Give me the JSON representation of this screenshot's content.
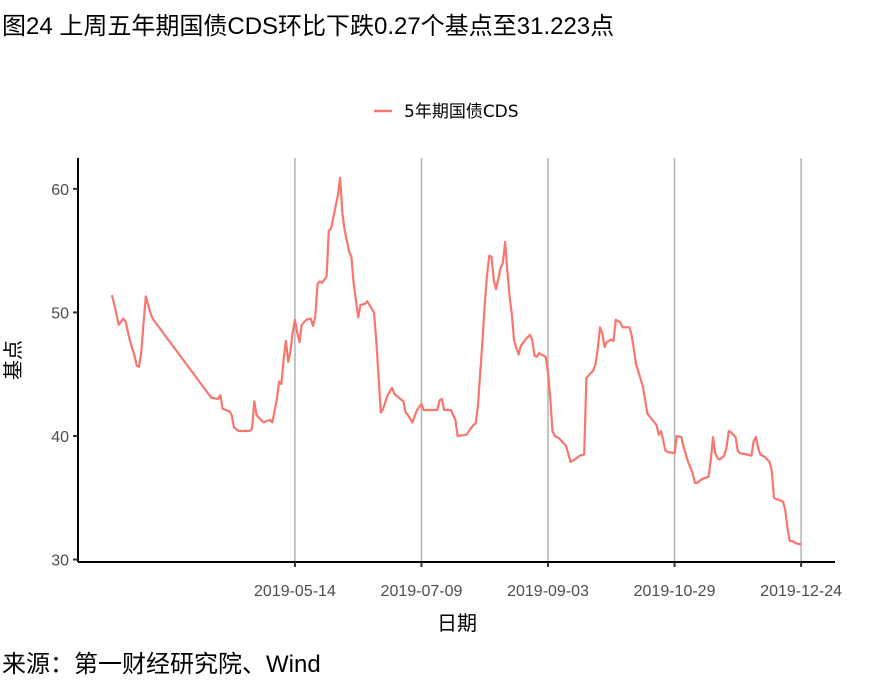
{
  "header": {
    "title": "图24 上周五年期国债CDS环比下跌0.27个基点至31.223点"
  },
  "footer": {
    "source": "来源：第一财经研究院、Wind"
  },
  "chart_data": {
    "type": "line",
    "title": "图24 上周五年期国债CDS环比下跌0.27个基点至31.223点",
    "xlabel": "日期",
    "ylabel": "基点",
    "xlim": [
      "2019-02-07",
      "2020-01-08"
    ],
    "ylim": [
      29.8,
      62.5
    ],
    "x_ticks": [
      "2019-05-14",
      "2019-07-09",
      "2019-09-03",
      "2019-10-29",
      "2019-12-24"
    ],
    "y_ticks": [
      30,
      40,
      50,
      60
    ],
    "grid": "vertical major lines at x ticks",
    "legend_position": "top",
    "series": [
      {
        "name": "5年期国债CDS",
        "color": "#F8766D",
        "points": [
          [
            "2019-02-22",
            51.4
          ],
          [
            "2019-02-23",
            50.7
          ],
          [
            "2019-02-25",
            49.0
          ],
          [
            "2019-02-27",
            49.5
          ],
          [
            "2019-02-28",
            49.3
          ],
          [
            "2019-03-02",
            47.7
          ],
          [
            "2019-03-04",
            46.5
          ],
          [
            "2019-03-05",
            45.7
          ],
          [
            "2019-03-06",
            45.6
          ],
          [
            "2019-03-07",
            46.8
          ],
          [
            "2019-03-08",
            49.1
          ],
          [
            "2019-03-09",
            51.3
          ],
          [
            "2019-03-11",
            50.0
          ],
          [
            "2019-03-12",
            49.5
          ],
          [
            "2019-04-07",
            43.1
          ],
          [
            "2019-04-10",
            43.0
          ],
          [
            "2019-04-11",
            43.3
          ],
          [
            "2019-04-12",
            42.2
          ],
          [
            "2019-04-15",
            42.0
          ],
          [
            "2019-04-16",
            41.7
          ],
          [
            "2019-04-17",
            40.7
          ],
          [
            "2019-04-19",
            40.4
          ],
          [
            "2019-04-24",
            40.4
          ],
          [
            "2019-04-25",
            40.6
          ],
          [
            "2019-04-26",
            42.8
          ],
          [
            "2019-04-27",
            41.7
          ],
          [
            "2019-04-30",
            41.1
          ],
          [
            "2019-05-03",
            41.3
          ],
          [
            "2019-05-04",
            41.1
          ],
          [
            "2019-05-06",
            43.0
          ],
          [
            "2019-05-07",
            44.4
          ],
          [
            "2019-05-08",
            44.2
          ],
          [
            "2019-05-09",
            46.2
          ],
          [
            "2019-05-10",
            47.7
          ],
          [
            "2019-05-11",
            46.0
          ],
          [
            "2019-05-12",
            46.8
          ],
          [
            "2019-05-13",
            48.4
          ],
          [
            "2019-05-14",
            49.4
          ],
          [
            "2019-05-15",
            48.4
          ],
          [
            "2019-05-16",
            47.6
          ],
          [
            "2019-05-17",
            49.0
          ],
          [
            "2019-05-19",
            49.4
          ],
          [
            "2019-05-21",
            49.5
          ],
          [
            "2019-05-22",
            48.9
          ],
          [
            "2019-05-23",
            49.7
          ],
          [
            "2019-05-24",
            52.3
          ],
          [
            "2019-05-25",
            52.5
          ],
          [
            "2019-05-26",
            52.4
          ],
          [
            "2019-05-28",
            52.9
          ],
          [
            "2019-05-29",
            56.6
          ],
          [
            "2019-05-30",
            56.8
          ],
          [
            "2019-06-02",
            59.5
          ],
          [
            "2019-06-03",
            60.9
          ],
          [
            "2019-06-04",
            58.0
          ],
          [
            "2019-06-05",
            56.7
          ],
          [
            "2019-06-07",
            54.9
          ],
          [
            "2019-06-08",
            54.5
          ],
          [
            "2019-06-09",
            52.3
          ],
          [
            "2019-06-11",
            49.6
          ],
          [
            "2019-06-12",
            50.6
          ],
          [
            "2019-06-14",
            50.7
          ],
          [
            "2019-06-15",
            50.9
          ],
          [
            "2019-06-18",
            50.0
          ],
          [
            "2019-06-19",
            47.7
          ],
          [
            "2019-06-21",
            41.9
          ],
          [
            "2019-06-22",
            42.2
          ],
          [
            "2019-06-24",
            43.3
          ],
          [
            "2019-06-26",
            43.9
          ],
          [
            "2019-06-27",
            43.4
          ],
          [
            "2019-07-01",
            42.8
          ],
          [
            "2019-07-02",
            41.9
          ],
          [
            "2019-07-03",
            41.7
          ],
          [
            "2019-07-05",
            41.1
          ],
          [
            "2019-07-07",
            42.1
          ],
          [
            "2019-07-09",
            42.6
          ],
          [
            "2019-07-10",
            42.1
          ],
          [
            "2019-07-12",
            42.1
          ],
          [
            "2019-07-16",
            42.1
          ],
          [
            "2019-07-17",
            42.9
          ],
          [
            "2019-07-18",
            43.0
          ],
          [
            "2019-07-19",
            42.1
          ],
          [
            "2019-07-22",
            42.1
          ],
          [
            "2019-07-24",
            41.3
          ],
          [
            "2019-07-25",
            40.0
          ],
          [
            "2019-07-29",
            40.1
          ],
          [
            "2019-07-30",
            40.4
          ],
          [
            "2019-08-01",
            40.9
          ],
          [
            "2019-08-02",
            41.0
          ],
          [
            "2019-08-03",
            42.5
          ],
          [
            "2019-08-04",
            45.1
          ],
          [
            "2019-08-05",
            47.7
          ],
          [
            "2019-08-06",
            50.6
          ],
          [
            "2019-08-07",
            53.0
          ],
          [
            "2019-08-08",
            54.6
          ],
          [
            "2019-08-09",
            54.5
          ],
          [
            "2019-08-10",
            52.6
          ],
          [
            "2019-08-11",
            51.9
          ],
          [
            "2019-08-12",
            52.7
          ],
          [
            "2019-08-13",
            53.6
          ],
          [
            "2019-08-14",
            54.0
          ],
          [
            "2019-08-15",
            55.7
          ],
          [
            "2019-08-16",
            53.4
          ],
          [
            "2019-08-17",
            51.3
          ],
          [
            "2019-08-18",
            49.8
          ],
          [
            "2019-08-19",
            47.7
          ],
          [
            "2019-08-21",
            46.6
          ],
          [
            "2019-08-22",
            47.3
          ],
          [
            "2019-08-24",
            47.8
          ],
          [
            "2019-08-26",
            48.2
          ],
          [
            "2019-08-27",
            47.8
          ],
          [
            "2019-08-28",
            46.5
          ],
          [
            "2019-08-29",
            46.4
          ],
          [
            "2019-08-30",
            46.7
          ],
          [
            "2019-09-02",
            46.4
          ],
          [
            "2019-09-03",
            45.1
          ],
          [
            "2019-09-04",
            43.0
          ],
          [
            "2019-09-05",
            40.4
          ],
          [
            "2019-09-06",
            40.0
          ],
          [
            "2019-09-08",
            39.8
          ],
          [
            "2019-09-11",
            39.2
          ],
          [
            "2019-09-13",
            37.9
          ],
          [
            "2019-09-14",
            38.0
          ],
          [
            "2019-09-17",
            38.4
          ],
          [
            "2019-09-19",
            38.5
          ],
          [
            "2019-09-20",
            44.7
          ],
          [
            "2019-09-23",
            45.3
          ],
          [
            "2019-09-24",
            45.8
          ],
          [
            "2019-09-25",
            47.0
          ],
          [
            "2019-09-26",
            48.8
          ],
          [
            "2019-09-27",
            48.3
          ],
          [
            "2019-09-28",
            47.2
          ],
          [
            "2019-09-29",
            47.6
          ],
          [
            "2019-10-01",
            47.8
          ],
          [
            "2019-10-02",
            47.7
          ],
          [
            "2019-10-03",
            49.4
          ],
          [
            "2019-10-05",
            49.2
          ],
          [
            "2019-10-06",
            48.8
          ],
          [
            "2019-10-09",
            48.8
          ],
          [
            "2019-10-10",
            48.2
          ],
          [
            "2019-10-11",
            47.0
          ],
          [
            "2019-10-12",
            45.8
          ],
          [
            "2019-10-13",
            45.2
          ],
          [
            "2019-10-15",
            44.0
          ],
          [
            "2019-10-17",
            41.8
          ],
          [
            "2019-10-21",
            40.9
          ],
          [
            "2019-10-22",
            40.1
          ],
          [
            "2019-10-23",
            40.4
          ],
          [
            "2019-10-24",
            39.6
          ],
          [
            "2019-10-25",
            38.8
          ],
          [
            "2019-10-26",
            38.7
          ],
          [
            "2019-10-29",
            38.6
          ],
          [
            "2019-10-30",
            40.0
          ],
          [
            "2019-11-01",
            39.9
          ],
          [
            "2019-11-02",
            39.1
          ],
          [
            "2019-11-04",
            37.9
          ],
          [
            "2019-11-06",
            37.0
          ],
          [
            "2019-11-07",
            36.2
          ],
          [
            "2019-11-08",
            36.2
          ],
          [
            "2019-11-10",
            36.5
          ],
          [
            "2019-11-13",
            36.7
          ],
          [
            "2019-11-14",
            38.0
          ],
          [
            "2019-11-15",
            39.9
          ],
          [
            "2019-11-16",
            38.6
          ],
          [
            "2019-11-17",
            38.2
          ],
          [
            "2019-11-18",
            38.1
          ],
          [
            "2019-11-20",
            38.4
          ],
          [
            "2019-11-21",
            39.1
          ],
          [
            "2019-11-22",
            40.4
          ],
          [
            "2019-11-23",
            40.3
          ],
          [
            "2019-11-25",
            39.9
          ],
          [
            "2019-11-26",
            38.8
          ],
          [
            "2019-11-27",
            38.6
          ],
          [
            "2019-11-30",
            38.5
          ],
          [
            "2019-12-02",
            38.4
          ],
          [
            "2019-12-03",
            39.6
          ],
          [
            "2019-12-04",
            39.9
          ],
          [
            "2019-12-05",
            39.0
          ],
          [
            "2019-12-06",
            38.5
          ],
          [
            "2019-12-08",
            38.3
          ],
          [
            "2019-12-10",
            37.9
          ],
          [
            "2019-12-11",
            37.2
          ],
          [
            "2019-12-12",
            35.0
          ],
          [
            "2019-12-13",
            34.9
          ],
          [
            "2019-12-16",
            34.7
          ],
          [
            "2019-12-17",
            34.0
          ],
          [
            "2019-12-18",
            32.5
          ],
          [
            "2019-12-19",
            31.5
          ],
          [
            "2019-12-20",
            31.5
          ],
          [
            "2019-12-22",
            31.3
          ],
          [
            "2019-12-24",
            31.223
          ]
        ]
      }
    ]
  }
}
